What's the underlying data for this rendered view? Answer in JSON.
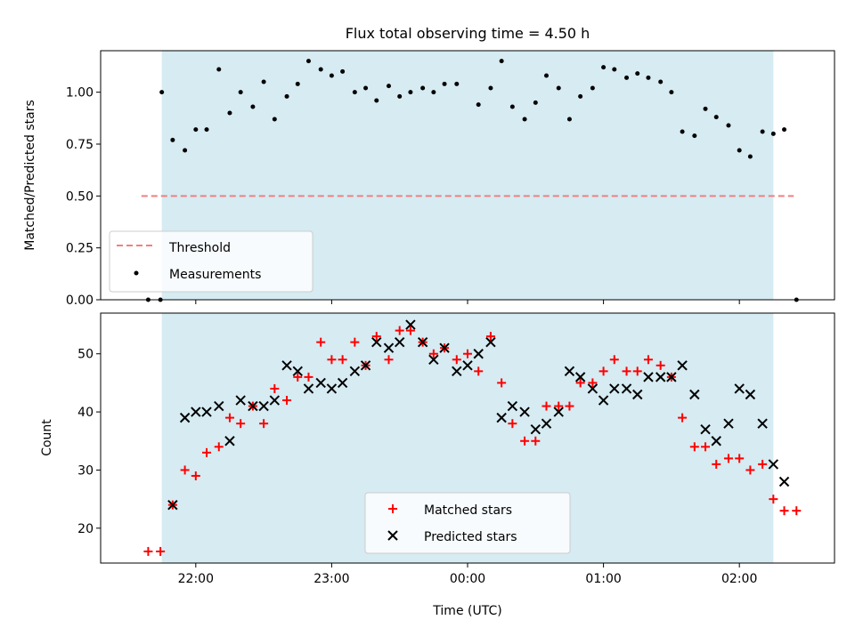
{
  "title": "Flux total observing time = 4.50 h",
  "colors": {
    "shade": "#add8e6",
    "threshold": "#f08080",
    "matched": "#ff0000",
    "predicted": "#000000",
    "measurement": "#000000"
  },
  "chart_data": [
    {
      "type": "scatter",
      "ylabel": "Matched/Predicted stars",
      "ylim": [
        0,
        1.2
      ],
      "yticks": [
        0.0,
        0.25,
        0.5,
        0.75,
        1.0
      ],
      "ytick_labels": [
        "0.00",
        "0.25",
        "0.50",
        "0.75",
        "1.00"
      ],
      "x_unit": "hours from 00:00 UTC",
      "xlim": [
        -2.7,
        2.7
      ],
      "xticks": [
        -2,
        -1,
        0,
        1,
        2
      ],
      "shaded_x_range": [
        -2.25,
        2.25
      ],
      "legend": {
        "location": "lower-left",
        "entries": [
          "Threshold",
          "Measurements"
        ]
      },
      "threshold": {
        "name": "Threshold",
        "y": 0.5,
        "x_range": [
          -2.4,
          2.4
        ]
      },
      "series": [
        {
          "name": "Measurements",
          "points": [
            [
              -2.35,
              0.0
            ],
            [
              -2.26,
              0.0
            ],
            [
              -2.25,
              1.0
            ],
            [
              -2.17,
              0.77
            ],
            [
              -2.08,
              0.72
            ],
            [
              -2.0,
              0.82
            ],
            [
              -1.92,
              0.82
            ],
            [
              -1.83,
              1.11
            ],
            [
              -1.75,
              0.9
            ],
            [
              -1.67,
              1.0
            ],
            [
              -1.58,
              0.93
            ],
            [
              -1.5,
              1.05
            ],
            [
              -1.42,
              0.87
            ],
            [
              -1.33,
              0.98
            ],
            [
              -1.25,
              1.04
            ],
            [
              -1.17,
              1.15
            ],
            [
              -1.08,
              1.11
            ],
            [
              -1.0,
              1.08
            ],
            [
              -0.92,
              1.1
            ],
            [
              -0.83,
              1.0
            ],
            [
              -0.75,
              1.02
            ],
            [
              -0.67,
              0.96
            ],
            [
              -0.58,
              1.03
            ],
            [
              -0.5,
              0.98
            ],
            [
              -0.42,
              1.0
            ],
            [
              -0.33,
              1.02
            ],
            [
              -0.25,
              1.0
            ],
            [
              -0.17,
              1.04
            ],
            [
              -0.08,
              1.04
            ],
            [
              0.08,
              0.94
            ],
            [
              0.17,
              1.02
            ],
            [
              0.25,
              1.15
            ],
            [
              0.33,
              0.93
            ],
            [
              0.42,
              0.87
            ],
            [
              0.5,
              0.95
            ],
            [
              0.58,
              1.08
            ],
            [
              0.67,
              1.02
            ],
            [
              0.75,
              0.87
            ],
            [
              0.83,
              0.98
            ],
            [
              0.92,
              1.02
            ],
            [
              1.0,
              1.12
            ],
            [
              1.08,
              1.11
            ],
            [
              1.17,
              1.07
            ],
            [
              1.25,
              1.09
            ],
            [
              1.33,
              1.07
            ],
            [
              1.42,
              1.05
            ],
            [
              1.5,
              1.0
            ],
            [
              1.58,
              0.81
            ],
            [
              1.67,
              0.79
            ],
            [
              1.75,
              0.92
            ],
            [
              1.83,
              0.88
            ],
            [
              1.92,
              0.84
            ],
            [
              2.0,
              0.72
            ],
            [
              2.08,
              0.69
            ],
            [
              2.17,
              0.81
            ],
            [
              2.25,
              0.8
            ],
            [
              2.33,
              0.82
            ],
            [
              2.42,
              0.0
            ]
          ]
        }
      ]
    },
    {
      "type": "scatter",
      "ylabel": "Count",
      "xlabel": "Time (UTC)",
      "ylim": [
        14,
        57
      ],
      "yticks": [
        20,
        30,
        40,
        50
      ],
      "ytick_labels": [
        "20",
        "30",
        "40",
        "50"
      ],
      "x_unit": "hours from 00:00 UTC",
      "xlim": [
        -2.7,
        2.7
      ],
      "xticks": [
        -2,
        -1,
        0,
        1,
        2
      ],
      "xtick_labels": [
        "22:00",
        "23:00",
        "00:00",
        "01:00",
        "02:00"
      ],
      "shaded_x_range": [
        -2.25,
        2.25
      ],
      "legend": {
        "location": "lower-center",
        "entries": [
          "Matched stars",
          "Predicted stars"
        ]
      },
      "series": [
        {
          "name": "Matched stars",
          "marker": "plus",
          "points": [
            [
              -2.35,
              16
            ],
            [
              -2.26,
              16
            ],
            [
              -2.17,
              24
            ],
            [
              -2.08,
              30
            ],
            [
              -2.0,
              29
            ],
            [
              -1.92,
              33
            ],
            [
              -1.83,
              34
            ],
            [
              -1.75,
              39
            ],
            [
              -1.67,
              38
            ],
            [
              -1.58,
              41
            ],
            [
              -1.5,
              38
            ],
            [
              -1.42,
              44
            ],
            [
              -1.33,
              42
            ],
            [
              -1.25,
              46
            ],
            [
              -1.17,
              46
            ],
            [
              -1.08,
              52
            ],
            [
              -1.0,
              49
            ],
            [
              -0.92,
              49
            ],
            [
              -0.83,
              52
            ],
            [
              -0.75,
              48
            ],
            [
              -0.67,
              53
            ],
            [
              -0.58,
              49
            ],
            [
              -0.5,
              54
            ],
            [
              -0.42,
              54
            ],
            [
              -0.33,
              52
            ],
            [
              -0.25,
              50
            ],
            [
              -0.17,
              51
            ],
            [
              -0.08,
              49
            ],
            [
              0.0,
              50
            ],
            [
              0.08,
              47
            ],
            [
              0.17,
              53
            ],
            [
              0.25,
              45
            ],
            [
              0.33,
              38
            ],
            [
              0.42,
              35
            ],
            [
              0.5,
              35
            ],
            [
              0.58,
              41
            ],
            [
              0.67,
              41
            ],
            [
              0.75,
              41
            ],
            [
              0.83,
              45
            ],
            [
              0.92,
              45
            ],
            [
              1.0,
              47
            ],
            [
              1.08,
              49
            ],
            [
              1.17,
              47
            ],
            [
              1.25,
              47
            ],
            [
              1.33,
              49
            ],
            [
              1.42,
              48
            ],
            [
              1.5,
              46
            ],
            [
              1.58,
              39
            ],
            [
              1.67,
              34
            ],
            [
              1.75,
              34
            ],
            [
              1.83,
              31
            ],
            [
              1.92,
              32
            ],
            [
              2.0,
              32
            ],
            [
              2.08,
              30
            ],
            [
              2.17,
              31
            ],
            [
              2.25,
              25
            ],
            [
              2.33,
              23
            ],
            [
              2.42,
              23
            ]
          ]
        },
        {
          "name": "Predicted stars",
          "marker": "x",
          "points": [
            [
              -2.17,
              24
            ],
            [
              -2.08,
              39
            ],
            [
              -2.0,
              40
            ],
            [
              -1.92,
              40
            ],
            [
              -1.83,
              41
            ],
            [
              -1.75,
              35
            ],
            [
              -1.67,
              42
            ],
            [
              -1.58,
              41
            ],
            [
              -1.5,
              41
            ],
            [
              -1.42,
              42
            ],
            [
              -1.33,
              48
            ],
            [
              -1.25,
              47
            ],
            [
              -1.17,
              44
            ],
            [
              -1.08,
              45
            ],
            [
              -1.0,
              44
            ],
            [
              -0.92,
              45
            ],
            [
              -0.83,
              47
            ],
            [
              -0.75,
              48
            ],
            [
              -0.67,
              52
            ],
            [
              -0.58,
              51
            ],
            [
              -0.5,
              52
            ],
            [
              -0.42,
              55
            ],
            [
              -0.33,
              52
            ],
            [
              -0.25,
              49
            ],
            [
              -0.17,
              51
            ],
            [
              -0.08,
              47
            ],
            [
              0.0,
              48
            ],
            [
              0.08,
              50
            ],
            [
              0.17,
              52
            ],
            [
              0.25,
              39
            ],
            [
              0.33,
              41
            ],
            [
              0.42,
              40
            ],
            [
              0.5,
              37
            ],
            [
              0.58,
              38
            ],
            [
              0.67,
              40
            ],
            [
              0.75,
              47
            ],
            [
              0.83,
              46
            ],
            [
              0.92,
              44
            ],
            [
              1.0,
              42
            ],
            [
              1.08,
              44
            ],
            [
              1.17,
              44
            ],
            [
              1.25,
              43
            ],
            [
              1.33,
              46
            ],
            [
              1.42,
              46
            ],
            [
              1.5,
              46
            ],
            [
              1.58,
              48
            ],
            [
              1.67,
              43
            ],
            [
              1.75,
              37
            ],
            [
              1.83,
              35
            ],
            [
              1.92,
              38
            ],
            [
              2.0,
              44
            ],
            [
              2.08,
              43
            ],
            [
              2.17,
              38
            ],
            [
              2.25,
              31
            ],
            [
              2.33,
              28
            ]
          ]
        }
      ]
    }
  ]
}
